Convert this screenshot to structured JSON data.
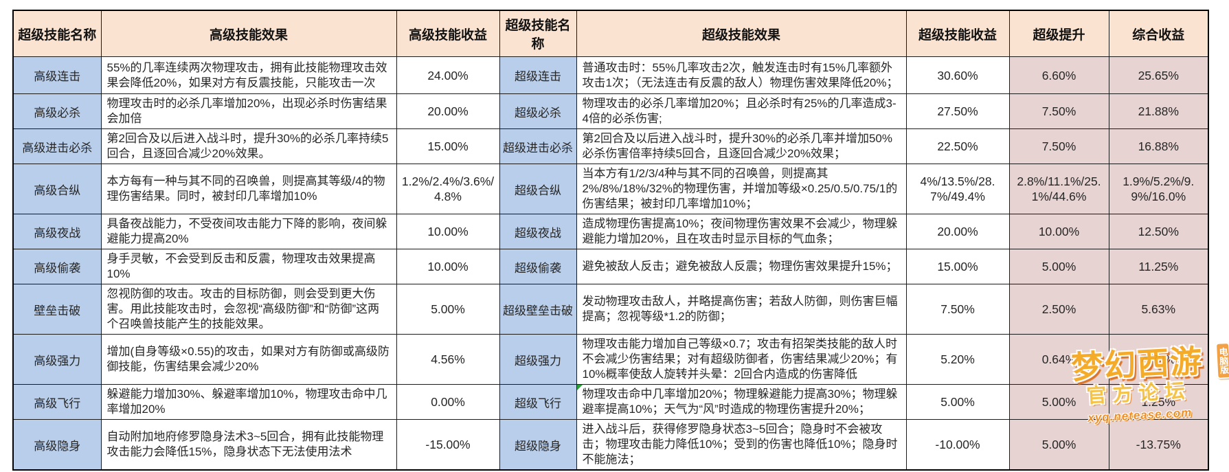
{
  "table": {
    "headers": [
      "超级技能名称",
      "高级技能效果",
      "高级技能收益",
      "超级技能名称",
      "超级技能效果",
      "超级技能收益",
      "超级提升",
      "综合收益"
    ],
    "rows": [
      {
        "adv_name": "高级连击",
        "adv_effect": "55%的几率连续两次物理攻击，拥有此技能物理攻击效果会降低20%，如果对方有反震技能，只能攻击一次",
        "adv_gain": "24.00%",
        "super_name": "超级连击",
        "super_effect": "普通攻击时：55%几率攻击2次，触发连击时有15%几率额外攻击1次；（无法连击有反震的敌人）物理伤害效果降低20%；",
        "super_gain": "30.60%",
        "boost": "6.60%",
        "overall": "25.65%"
      },
      {
        "adv_name": "高级必杀",
        "adv_effect": "物理攻击时的必杀几率增加20%，出现必杀时伤害结果会加倍",
        "adv_gain": "20.00%",
        "super_name": "超级必杀",
        "super_effect": "物理攻击的必杀几率增加20%；且必杀时有25%的几率造成3-4倍的必杀伤害;",
        "super_gain": "27.50%",
        "boost": "7.50%",
        "overall": "21.88%"
      },
      {
        "adv_name": "高级进击必杀",
        "adv_effect": "第2回合及以后进入战斗时，提升30%的必杀几率持续5回合，且逐回合减少20%效果。",
        "adv_gain": "15.00%",
        "super_name": "超级进击必杀",
        "super_effect": "第2回合及以后进入战斗时，提升30%的必杀几率并增加50%必杀伤害倍率持续5回合，且逐回合减少20%效果；",
        "super_gain": "22.50%",
        "boost": "7.50%",
        "overall": "16.88%"
      },
      {
        "adv_name": "高级合纵",
        "adv_effect": "本方每有一种与其不同的召唤兽，则提高其等级/4的物理伤害结果。同时，被封印几率增加10%",
        "adv_gain": "1.2%/2.4%/3.6%/4.8%",
        "super_name": "超级合纵",
        "super_effect": "当本方有1/2/3/4种与其不同的召唤兽，则提高其2%/8%/18%/32%的物理伤害，并增加等级×0.25/0.5/0.75/1的伤害结果；被封印几率增加10%；",
        "super_gain": "4%/13.5%/28.7%/49.4%",
        "boost": "2.8%/11.1%/25.1%/44.6%",
        "overall": "1.9%/5.2%/9.9%/16.0%"
      },
      {
        "adv_name": "高级夜战",
        "adv_effect": "具备夜战能力，不受夜间攻击能力下降的影响，夜间躲避能力提高20%",
        "adv_gain": "10.00%",
        "super_name": "超级夜战",
        "super_effect": "造成物理伤害提高10%；夜间物理伤害效果不会减少，物理躲避能力增加20%，且在攻击时显示目标的气血条；",
        "super_gain": "20.00%",
        "boost": "10.00%",
        "overall": "12.50%"
      },
      {
        "adv_name": "高级偷袭",
        "adv_effect": "身手灵敏，不会受到反击和反震，物理攻击效果提高10%",
        "adv_gain": "10.00%",
        "super_name": "超级偷袭",
        "super_effect": "避免被敌人反击；避免被敌人反震；物理伤害效果提升15%；",
        "super_gain": "15.00%",
        "boost": "5.00%",
        "overall": "11.25%"
      },
      {
        "adv_name": "壁垒击破",
        "adv_effect": "忽视防御的攻击。攻击的目标防御，则会受到更大伤害。用此技能攻击时，会忽视“高级防御”和“防御”这两个召唤兽技能产生的技能效果。",
        "adv_gain": "5.00%",
        "super_name": "超级壁垒击破",
        "super_effect": "发动物理攻击敌人，并略提高伤害；若敌人防御，则伤害巨幅提高；忽视等级*1.2的防御；",
        "super_gain": "7.50%",
        "boost": "2.50%",
        "overall": "5.63%"
      },
      {
        "adv_name": "高级强力",
        "adv_effect": "增加(自身等级×0.55)的攻击，如果对方有防御或高级防御技能，伤害结果会减少20%",
        "adv_gain": "4.56%",
        "super_name": "超级强力",
        "super_effect": "物理攻击能力增加自己等级×0.7；攻击有招架类技能的敌人时不会减少伤害结果；对有超级防御者，伤害结果减少20%；有10%概率使敌人旋转并头晕：2回合内造成的伤害降低",
        "super_gain": "5.20%",
        "boost": "0.64%",
        "overall": "4.72%"
      },
      {
        "adv_name": "高级飞行",
        "adv_effect": "躲避能力增加30%、躲避率增加10%，物理攻击命中几率增加20%",
        "adv_gain": "0.00%",
        "super_name": "超级飞行",
        "super_effect": "物理攻击命中几率增加20%；物理躲避能力提高30%；物理躲避率提高10%；天气为“风”时造成的物理伤害提升20%；",
        "super_gain": "5.00%",
        "boost": "5.00%",
        "overall": "1.25%"
      },
      {
        "adv_name": "高级隐身",
        "adv_effect": "自动附加地府修罗隐身法术3~5回合，拥有此技能物理攻击能力会降低15%，隐身状态下无法使用法术",
        "adv_gain": "-15.00%",
        "super_name": "超级隐身",
        "super_effect": "进入战斗后，获得修罗隐身状态3~5回合；隐身时不会被攻击；物理攻击能力降低10%；受到的伤害也降低10%；隐身时不能施法；",
        "super_gain": "-10.00%",
        "boost": "5.00%",
        "overall": "-13.75%"
      }
    ]
  },
  "watermark": {
    "title": "梦幻西游",
    "subtitle": "官方论坛",
    "url": "xyq.netease.com",
    "badge": "电脑版"
  },
  "colors": {
    "header_bg": "#FBE3D1",
    "name_bg": "#B9CEEA",
    "highlight_bg": "#E8D3D3",
    "border": "#000000",
    "watermark_orange": "#F7A81E"
  }
}
